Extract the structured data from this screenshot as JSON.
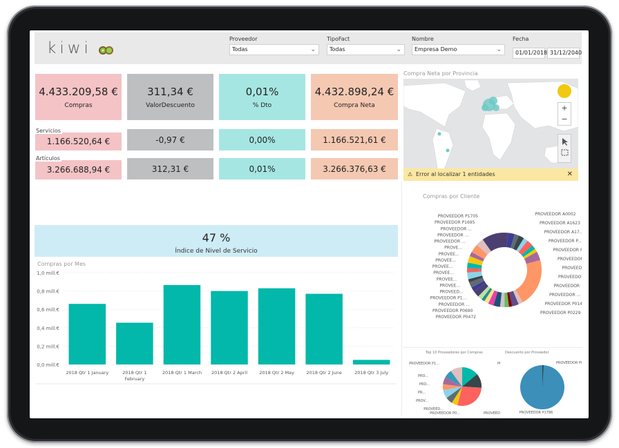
{
  "header": {
    "logo_text": "kiwi",
    "slicers": [
      {
        "label": "Proveedor",
        "value": "Todas"
      },
      {
        "label": "TipoFact",
        "value": "Todas"
      },
      {
        "label": "Nombre",
        "value": "Empresa Demo"
      }
    ],
    "fecha": {
      "label": "Fecha",
      "from": "01/01/2018",
      "to": "31/12/2040"
    }
  },
  "kpis": {
    "top": [
      {
        "value": "4.433.209,58 €",
        "label": "Compras"
      },
      {
        "value": "311,34 €",
        "label": "ValorDescuento"
      },
      {
        "value": "0,01%",
        "label": "% Dto"
      },
      {
        "value": "4.432.898,24 €",
        "label": "Compra Neta"
      }
    ],
    "servicios": {
      "label": "Servicios",
      "values": [
        "1.166.520,64 €",
        "-0,97 €",
        "0,00%",
        "1.166.521,61 €"
      ]
    },
    "articulos": {
      "label": "Artículos",
      "values": [
        "3.266.688,94 €",
        "312,31 €",
        "0,01%",
        "3.266.376,63 €"
      ]
    }
  },
  "map": {
    "title": "Compra Neta por Provincia",
    "error": "Error al localizar 1 entidades",
    "zoom_in": "+",
    "zoom_out": "−"
  },
  "service_level": {
    "value": "47 %",
    "label": "Índice de Nivel de Servicio"
  },
  "titles": {
    "compras_cliente": "Compras por Cliente",
    "top10": "Top 10 Proveedores por Compras",
    "descuento": "Descuento por Proveedor"
  },
  "chart_data": [
    {
      "type": "bar",
      "title": "Compras por Mes",
      "categories": [
        "2018 Qtr 1 January",
        "2018 Qtr 1 February",
        "2018 Qtr 1 March",
        "2018 Qtr 2 April",
        "2018 Qtr 2 May",
        "2018 Qtr 2 June",
        "2018 Qtr 3 July"
      ],
      "category_lines": [
        [
          "2018 Qtr 1 January"
        ],
        [
          "2018 Qtr 1",
          "February"
        ],
        [
          "2018 Qtr 1 March"
        ],
        [
          "2018 Qtr 2 April"
        ],
        [
          "2018 Qtr 2 May"
        ],
        [
          "2018 Qtr 2 June"
        ],
        [
          "2018 Qtr 3 July"
        ]
      ],
      "values": [
        0.66,
        0.455,
        0.865,
        0.8,
        0.83,
        0.77,
        0.05
      ],
      "yticks": [
        "0,0 mill.€",
        "0,2 mill.€",
        "0,4 mill.€",
        "0,6 mill.€",
        "0,8 mill.€",
        "1,0 mill.€"
      ],
      "ylim": [
        0,
        1.0
      ],
      "color": "#01b8aa"
    },
    {
      "type": "pie",
      "title": "Compras por Cliente",
      "labels_left": [
        "PROVEEDOR P1705",
        "PROVEEDOR P1695",
        "PROVEEDOR ...",
        "PROVEEDOR ...",
        "PROVEEDOR ...",
        "PROVE...",
        "PROVEE...",
        "PROVEE...",
        "PROVEE...",
        "PROVEE...",
        "PROVEE...",
        "PROVEE...",
        "PROVEED...",
        "PROVEEDOR P1...",
        "PROVEEDOR ...",
        "PROVEEDOR P0690",
        "PROVEEDOR P0472"
      ],
      "labels_right": [
        "PROVEEDOR A0002",
        "PROVEEDOR A1623",
        "PROVEEDOR A17...",
        "PROVEEDOR P...",
        "PROVEEDOR P...",
        "PROVEEDOR ...",
        "PROVEEDOR ...",
        "PROVEEDOR ...",
        "PROVEEDOR",
        "PROVEEDOR ...",
        "PROVEEDOR P0142",
        "PROVEEDOR P0229"
      ]
    },
    {
      "type": "pie",
      "title": "Top 10 Proveedores por Compras",
      "labels": [
        "PROVEEDOR P1...",
        "PROVEEDOR A0...",
        "PRO...",
        "PRO...",
        "PR...",
        "PROV...",
        "PROVEED...",
        "PROVEEDOR P0...",
        "PRO...",
        "PROVEEDOR P0277"
      ]
    },
    {
      "type": "pie",
      "title": "Descuento por Proveedor",
      "labels": [
        "PROVEEDOR P0073",
        "PROVEEDOR P1786"
      ]
    }
  ]
}
